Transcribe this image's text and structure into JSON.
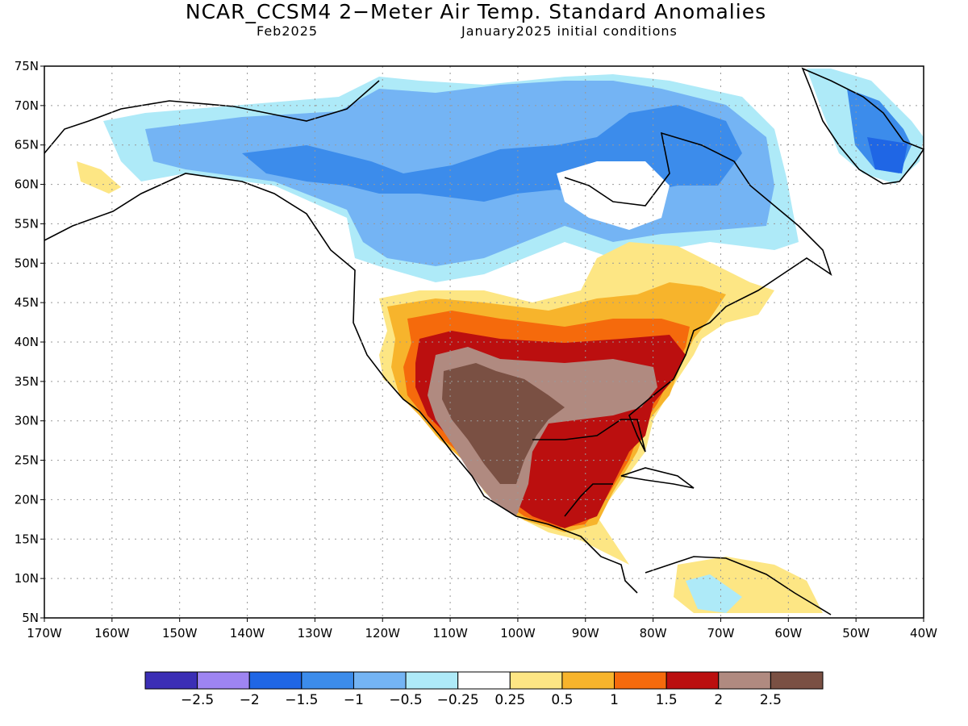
{
  "header": {
    "title": "NCAR_CCSM4 2−Meter Air Temp. Standard Anomalies",
    "valid_month": "Feb2025",
    "init_note": "January2025 initial conditions"
  },
  "axes": {
    "lat_labels": [
      "75N",
      "70N",
      "65N",
      "60N",
      "55N",
      "50N",
      "45N",
      "40N",
      "35N",
      "30N",
      "25N",
      "20N",
      "15N",
      "10N",
      "5N"
    ],
    "lon_labels": [
      "170W",
      "160W",
      "150W",
      "140W",
      "130W",
      "120W",
      "110W",
      "100W",
      "90W",
      "80W",
      "70W",
      "60W",
      "50W",
      "40W"
    ]
  },
  "colorbar": {
    "colors": [
      "#3b2eb5",
      "#9e84f2",
      "#1f66e5",
      "#3c8ceb",
      "#74b4f4",
      "#aeeaf8",
      "#ffffff",
      "#fde684",
      "#f7b42c",
      "#f56a0c",
      "#bb0f0f",
      "#b08a80",
      "#7a5043"
    ],
    "labels": [
      "−2.5",
      "−2",
      "−1.5",
      "−1",
      "−0.5",
      "−0.25",
      "0.25",
      "0.5",
      "1",
      "1.5",
      "2",
      "2.5"
    ]
  }
}
